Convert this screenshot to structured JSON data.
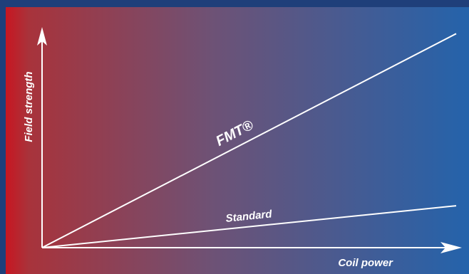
{
  "chart_data": {
    "type": "line",
    "title": "",
    "xlabel": "Coil power",
    "ylabel": "Field strength",
    "grid": false,
    "legend": "none",
    "axis_ticks": false,
    "series": [
      {
        "name": "FMT®",
        "x": [
          0,
          1
        ],
        "y": [
          0,
          0.97
        ]
      },
      {
        "name": "Standard",
        "x": [
          0,
          1
        ],
        "y": [
          0,
          0.19
        ]
      }
    ],
    "xlim": [
      0,
      1.05
    ],
    "ylim": [
      0,
      1.0
    ]
  },
  "colors": {
    "gradient_left": "#c81621",
    "gradient_mid": "#6d5276",
    "gradient_right": "#2463ab",
    "frame": "#1f3f7a",
    "line": "#ffffff"
  }
}
